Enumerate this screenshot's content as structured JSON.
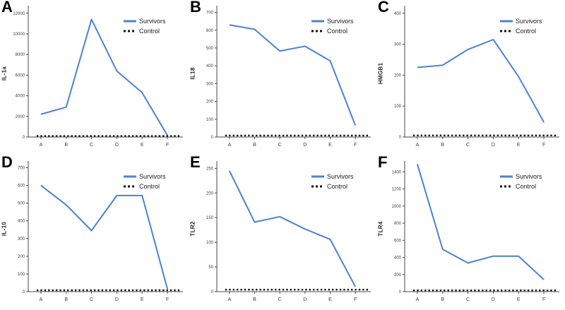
{
  "figure": {
    "description": "Six-panel line chart figure comparing Survivors vs Control",
    "panels_order": [
      "A",
      "B",
      "C",
      "D",
      "E",
      "F"
    ]
  },
  "colors": {
    "survivors_line": "#4d81d3",
    "control_line": "#111111",
    "axis": "#4a4a4a",
    "tick_text": "#3c3c3c",
    "legend_text": "#1a1a1a",
    "background": "#ffffff"
  },
  "legend": {
    "survivors_label": "Survivors",
    "control_label": "Control",
    "position": "top-right-inside"
  },
  "chart_data": [
    {
      "type": "line",
      "panel": "A",
      "ylabel": "IL-1a",
      "xlabel": "",
      "categories": [
        "A",
        "B",
        "C",
        "D",
        "E",
        "F"
      ],
      "series": [
        {
          "name": "Survivors",
          "style": "solid",
          "values": [
            2200,
            2900,
            11400,
            6400,
            4300,
            150
          ]
        },
        {
          "name": "Control",
          "style": "dashed",
          "values": [
            100,
            100,
            100,
            100,
            100,
            100
          ]
        }
      ],
      "ylim": [
        0,
        12600
      ],
      "ytick_step": 2000,
      "grid": false,
      "legend_position": "top-right"
    },
    {
      "type": "line",
      "panel": "B",
      "ylabel": "IL18",
      "xlabel": "",
      "categories": [
        "A",
        "B",
        "C",
        "D",
        "E",
        "F"
      ],
      "series": [
        {
          "name": "Survivors",
          "style": "solid",
          "values": [
            630,
            605,
            483,
            510,
            428,
            65
          ]
        },
        {
          "name": "Control",
          "style": "dashed",
          "values": [
            8,
            8,
            8,
            8,
            8,
            8
          ]
        }
      ],
      "ylim": [
        0,
        730
      ],
      "ytick_step": 100,
      "grid": false,
      "legend_position": "top-right"
    },
    {
      "type": "line",
      "panel": "C",
      "ylabel": "HMGB1",
      "xlabel": "",
      "categories": [
        "A",
        "B",
        "C",
        "D",
        "E",
        "F"
      ],
      "series": [
        {
          "name": "Survivors",
          "style": "solid",
          "values": [
            225,
            232,
            283,
            315,
            195,
            48
          ]
        },
        {
          "name": "Control",
          "style": "dashed",
          "values": [
            5,
            5,
            5,
            5,
            5,
            5
          ]
        }
      ],
      "ylim": [
        0,
        420
      ],
      "ytick_step": 100,
      "grid": false,
      "legend_position": "top-right"
    },
    {
      "type": "line",
      "panel": "D",
      "ylabel": "IL-10",
      "xlabel": "",
      "categories": [
        "A",
        "B",
        "C",
        "D",
        "E",
        "F"
      ],
      "series": [
        {
          "name": "Survivors",
          "style": "solid",
          "values": [
            600,
            490,
            345,
            543,
            543,
            15
          ]
        },
        {
          "name": "Control",
          "style": "dashed",
          "values": [
            8,
            8,
            8,
            8,
            8,
            8
          ]
        }
      ],
      "ylim": [
        0,
        730
      ],
      "ytick_step": 100,
      "grid": false,
      "legend_position": "top-right"
    },
    {
      "type": "line",
      "panel": "E",
      "ylabel": "TLR2",
      "xlabel": "",
      "categories": [
        "A",
        "B",
        "C",
        "D",
        "E",
        "F"
      ],
      "series": [
        {
          "name": "Survivors",
          "style": "solid",
          "values": [
            245,
            141,
            152,
            127,
            106,
            10
          ]
        },
        {
          "name": "Control",
          "style": "dashed",
          "values": [
            4,
            4,
            4,
            4,
            4,
            4
          ]
        }
      ],
      "ylim": [
        0,
        262
      ],
      "ytick_step": 50,
      "grid": false,
      "legend_position": "top-right"
    },
    {
      "type": "line",
      "panel": "F",
      "ylabel": "TLR4",
      "xlabel": "",
      "categories": [
        "A",
        "B",
        "C",
        "D",
        "E",
        "F"
      ],
      "series": [
        {
          "name": "Survivors",
          "style": "solid",
          "values": [
            1490,
            495,
            335,
            415,
            415,
            140
          ]
        },
        {
          "name": "Control",
          "style": "dashed",
          "values": [
            15,
            15,
            15,
            15,
            15,
            15
          ]
        }
      ],
      "ylim": [
        0,
        1510
      ],
      "ytick_step": 200,
      "grid": false,
      "legend_position": "top-right"
    }
  ]
}
